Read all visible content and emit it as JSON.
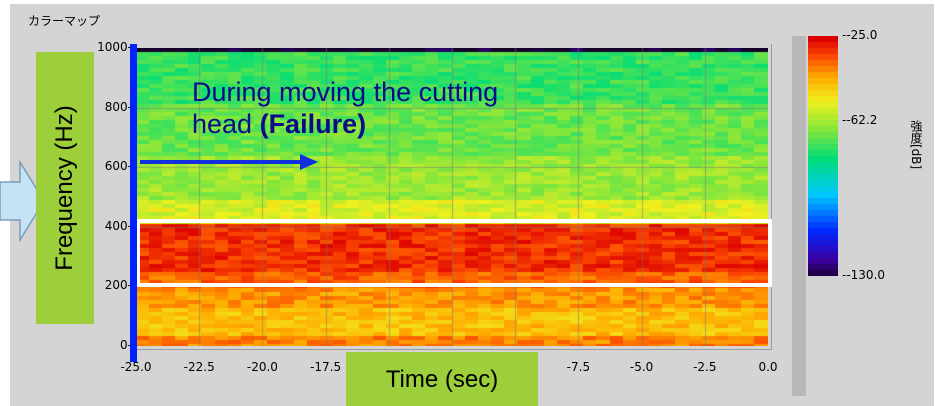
{
  "panel": {
    "title": "カラーマップ"
  },
  "callout": {
    "line1": "During moving the cutting",
    "line2_prefix": "head ",
    "line2_bold": "(Failure)"
  },
  "labels": {
    "ylabel": "Frequency (Hz)",
    "xlabel": "Time (sec)"
  },
  "yticks": [
    "1000-",
    "800-",
    "600-",
    "400-",
    "200-",
    "0-"
  ],
  "xticks": [
    "-25.0",
    "-22.5",
    "-20.0",
    "-17.5",
    "-15.0",
    "-12.5",
    "-10.0",
    "-7.5",
    "-5.0",
    "-2.5",
    "0.0"
  ],
  "colorbar": {
    "ticks": [
      "--25.0",
      "--62.2",
      "--130.0"
    ],
    "label": "強度[dB]"
  },
  "colors": {
    "panel_bg": "#d4d4d4",
    "label_bg": "#9ccf3a",
    "axis_blue": "#0022ff",
    "highlight": "#ffffff"
  },
  "chart_data": {
    "type": "heatmap",
    "x_range": [
      -25.0,
      0.0
    ],
    "y_range": [
      0,
      1000
    ],
    "z_range": [
      -130.0,
      -25.0
    ],
    "bands": [
      {
        "from": 0,
        "to": 40,
        "level": -38
      },
      {
        "from": 40,
        "to": 140,
        "level": -45
      },
      {
        "from": 140,
        "to": 200,
        "level": -40
      },
      {
        "from": 200,
        "to": 260,
        "level": -35
      },
      {
        "from": 260,
        "to": 410,
        "level": -30
      },
      {
        "from": 410,
        "to": 500,
        "level": -55
      },
      {
        "from": 500,
        "to": 650,
        "level": -62
      },
      {
        "from": 650,
        "to": 820,
        "level": -67
      },
      {
        "from": 820,
        "to": 1000,
        "level": -72
      }
    ]
  }
}
